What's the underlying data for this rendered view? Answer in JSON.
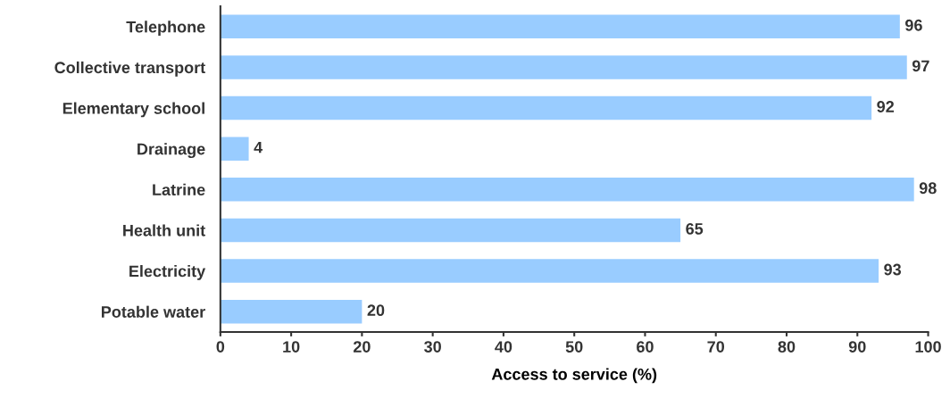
{
  "chart_data": {
    "type": "bar",
    "orientation": "horizontal",
    "xlabel": "Access to service (%)",
    "categories": [
      "Telephone",
      "Collective transport",
      "Elementary school",
      "Drainage",
      "Latrine",
      "Health unit",
      "Electricity",
      "Potable water"
    ],
    "values": [
      96,
      97,
      92,
      4,
      98,
      65,
      93,
      20
    ],
    "color": "#99ccff",
    "xlim": [
      0,
      100
    ],
    "xticks": [
      0,
      10,
      20,
      30,
      40,
      50,
      60,
      70,
      80,
      90,
      100
    ],
    "data_labels": true,
    "grid": false,
    "legend": false
  }
}
